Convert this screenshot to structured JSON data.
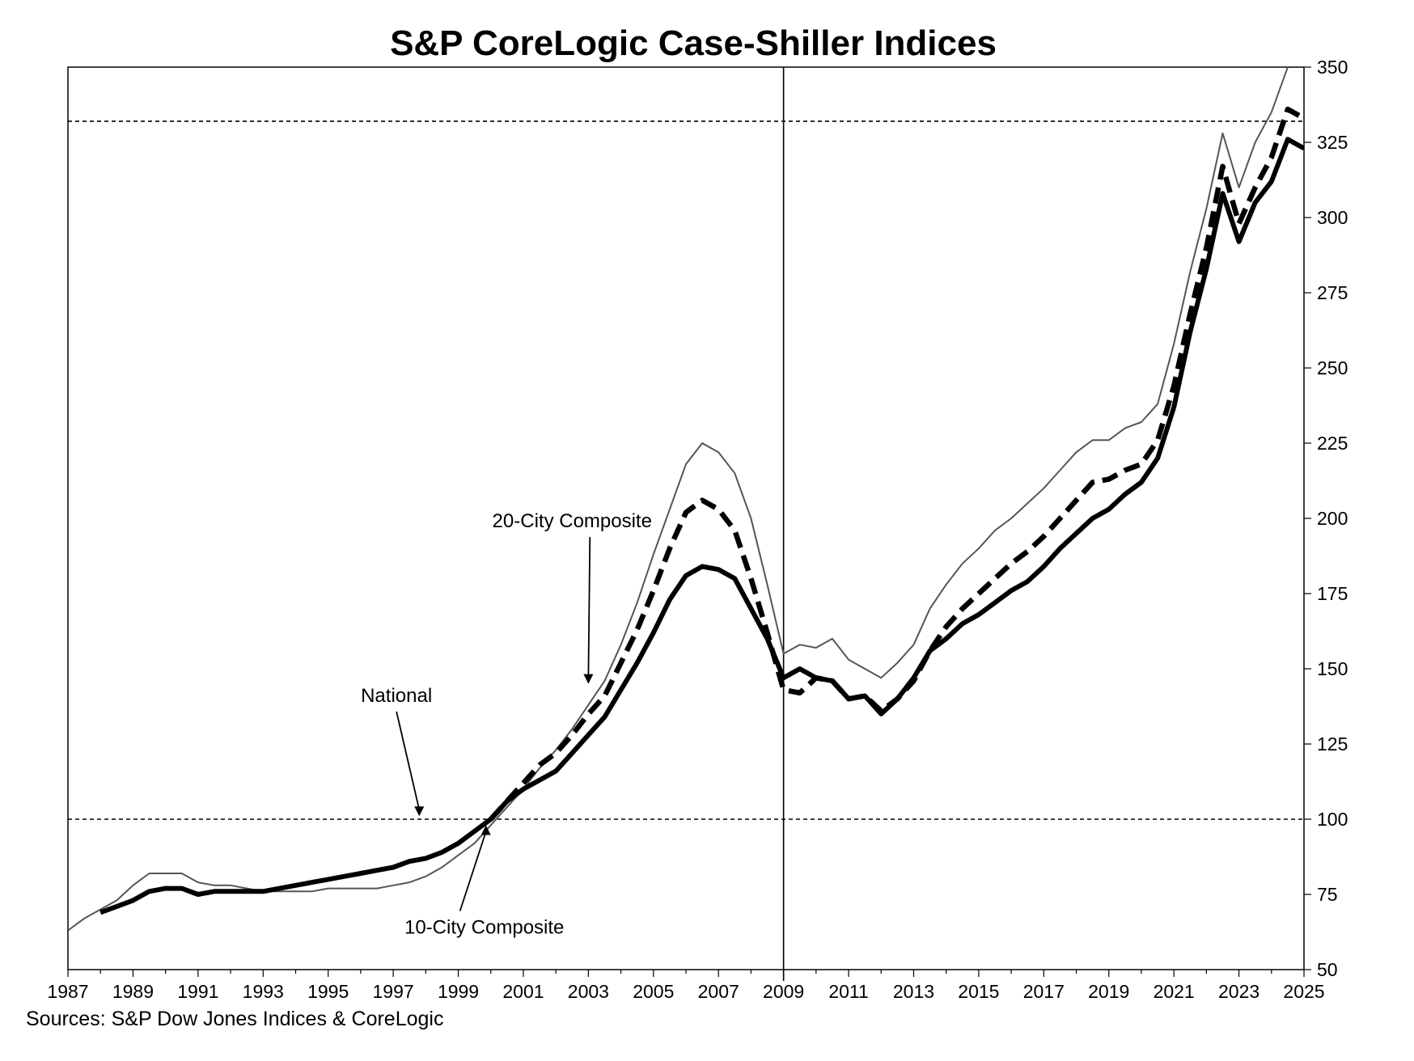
{
  "chart_data": {
    "type": "line",
    "title": "S&P CoreLogic Case-Shiller Indices",
    "xlabel": "",
    "ylabel": "",
    "xlim": [
      1987,
      2025
    ],
    "ylim": [
      50,
      350
    ],
    "x_ticks": [
      "1987",
      "1989",
      "1991",
      "1993",
      "1995",
      "1997",
      "1999",
      "2001",
      "2003",
      "2005",
      "2007",
      "2009",
      "2011",
      "2013",
      "2015",
      "2017",
      "2019",
      "2021",
      "2023",
      "2025"
    ],
    "y_ticks": [
      "50",
      "75",
      "100",
      "125",
      "150",
      "175",
      "200",
      "225",
      "250",
      "275",
      "300",
      "325",
      "350"
    ],
    "y_axis_side": "right",
    "grid": false,
    "reference_lines": {
      "horizontal": [
        100,
        332
      ],
      "vertical": [
        2009
      ]
    },
    "series": [
      {
        "name": "National",
        "style": "thin solid gray",
        "color": "#555555",
        "points": [
          [
            1987.0,
            63
          ],
          [
            1987.5,
            67
          ],
          [
            1988.0,
            70
          ],
          [
            1988.5,
            73
          ],
          [
            1989.0,
            78
          ],
          [
            1989.5,
            82
          ],
          [
            1990.0,
            82
          ],
          [
            1990.5,
            82
          ],
          [
            1991.0,
            79
          ],
          [
            1991.5,
            78
          ],
          [
            1992.0,
            78
          ],
          [
            1992.5,
            77
          ],
          [
            1993.0,
            76
          ],
          [
            1993.5,
            76
          ],
          [
            1994.0,
            76
          ],
          [
            1994.5,
            76
          ],
          [
            1995.0,
            77
          ],
          [
            1995.5,
            77
          ],
          [
            1996.0,
            77
          ],
          [
            1996.5,
            77
          ],
          [
            1997.0,
            78
          ],
          [
            1997.5,
            79
          ],
          [
            1998.0,
            81
          ],
          [
            1998.5,
            84
          ],
          [
            1999.0,
            88
          ],
          [
            1999.5,
            92
          ],
          [
            2000.0,
            98
          ],
          [
            2000.5,
            104
          ],
          [
            2001.0,
            110
          ],
          [
            2001.5,
            117
          ],
          [
            2002.0,
            123
          ],
          [
            2002.5,
            130
          ],
          [
            2003.0,
            138
          ],
          [
            2003.5,
            146
          ],
          [
            2004.0,
            158
          ],
          [
            2004.5,
            172
          ],
          [
            2005.0,
            188
          ],
          [
            2005.5,
            203
          ],
          [
            2006.0,
            218
          ],
          [
            2006.5,
            225
          ],
          [
            2007.0,
            222
          ],
          [
            2007.5,
            215
          ],
          [
            2008.0,
            200
          ],
          [
            2008.5,
            178
          ],
          [
            2009.0,
            155
          ],
          [
            2009.5,
            158
          ],
          [
            2010.0,
            157
          ],
          [
            2010.5,
            160
          ],
          [
            2011.0,
            153
          ],
          [
            2011.5,
            150
          ],
          [
            2012.0,
            147
          ],
          [
            2012.5,
            152
          ],
          [
            2013.0,
            158
          ],
          [
            2013.5,
            170
          ],
          [
            2014.0,
            178
          ],
          [
            2014.5,
            185
          ],
          [
            2015.0,
            190
          ],
          [
            2015.5,
            196
          ],
          [
            2016.0,
            200
          ],
          [
            2016.5,
            205
          ],
          [
            2017.0,
            210
          ],
          [
            2017.5,
            216
          ],
          [
            2018.0,
            222
          ],
          [
            2018.5,
            226
          ],
          [
            2019.0,
            226
          ],
          [
            2019.5,
            230
          ],
          [
            2020.0,
            232
          ],
          [
            2020.5,
            238
          ],
          [
            2021.0,
            258
          ],
          [
            2021.5,
            282
          ],
          [
            2022.0,
            303
          ],
          [
            2022.5,
            328
          ],
          [
            2023.0,
            310
          ],
          [
            2023.5,
            325
          ],
          [
            2024.0,
            335
          ],
          [
            2024.5,
            350
          ]
        ]
      },
      {
        "name": "20-City Composite",
        "style": "thick dashed black",
        "color": "#000000",
        "points": [
          [
            2000.0,
            100
          ],
          [
            2000.5,
            106
          ],
          [
            2001.0,
            112
          ],
          [
            2001.5,
            118
          ],
          [
            2002.0,
            122
          ],
          [
            2002.5,
            128
          ],
          [
            2003.0,
            135
          ],
          [
            2003.5,
            141
          ],
          [
            2004.0,
            152
          ],
          [
            2004.5,
            163
          ],
          [
            2005.0,
            176
          ],
          [
            2005.5,
            190
          ],
          [
            2006.0,
            202
          ],
          [
            2006.5,
            206
          ],
          [
            2007.0,
            203
          ],
          [
            2007.5,
            196
          ],
          [
            2008.0,
            180
          ],
          [
            2008.5,
            162
          ],
          [
            2009.0,
            143
          ],
          [
            2009.5,
            142
          ],
          [
            2010.0,
            147
          ],
          [
            2010.5,
            146
          ],
          [
            2011.0,
            140
          ],
          [
            2011.5,
            141
          ],
          [
            2012.0,
            136
          ],
          [
            2012.5,
            140
          ],
          [
            2013.0,
            146
          ],
          [
            2013.5,
            156
          ],
          [
            2014.0,
            164
          ],
          [
            2014.5,
            170
          ],
          [
            2015.0,
            175
          ],
          [
            2015.5,
            180
          ],
          [
            2016.0,
            185
          ],
          [
            2016.5,
            189
          ],
          [
            2017.0,
            194
          ],
          [
            2017.5,
            200
          ],
          [
            2018.0,
            206
          ],
          [
            2018.5,
            212
          ],
          [
            2019.0,
            213
          ],
          [
            2019.5,
            216
          ],
          [
            2020.0,
            218
          ],
          [
            2020.5,
            226
          ],
          [
            2021.0,
            244
          ],
          [
            2021.5,
            268
          ],
          [
            2022.0,
            290
          ],
          [
            2022.5,
            317
          ],
          [
            2023.0,
            298
          ],
          [
            2023.5,
            310
          ],
          [
            2024.0,
            320
          ],
          [
            2024.5,
            336
          ],
          [
            2025.0,
            333
          ]
        ]
      },
      {
        "name": "10-City Composite",
        "style": "thick solid black",
        "color": "#000000",
        "points": [
          [
            1988.0,
            69
          ],
          [
            1988.5,
            71
          ],
          [
            1989.0,
            73
          ],
          [
            1989.5,
            76
          ],
          [
            1990.0,
            77
          ],
          [
            1990.5,
            77
          ],
          [
            1991.0,
            75
          ],
          [
            1991.5,
            76
          ],
          [
            1992.0,
            76
          ],
          [
            1992.5,
            76
          ],
          [
            1993.0,
            76
          ],
          [
            1993.5,
            77
          ],
          [
            1994.0,
            78
          ],
          [
            1994.5,
            79
          ],
          [
            1995.0,
            80
          ],
          [
            1995.5,
            81
          ],
          [
            1996.0,
            82
          ],
          [
            1996.5,
            83
          ],
          [
            1997.0,
            84
          ],
          [
            1997.5,
            86
          ],
          [
            1998.0,
            87
          ],
          [
            1998.5,
            89
          ],
          [
            1999.0,
            92
          ],
          [
            1999.5,
            96
          ],
          [
            2000.0,
            100
          ],
          [
            2000.5,
            106
          ],
          [
            2001.0,
            110
          ],
          [
            2001.5,
            113
          ],
          [
            2002.0,
            116
          ],
          [
            2002.5,
            122
          ],
          [
            2003.0,
            128
          ],
          [
            2003.5,
            134
          ],
          [
            2004.0,
            143
          ],
          [
            2004.5,
            152
          ],
          [
            2005.0,
            162
          ],
          [
            2005.5,
            173
          ],
          [
            2006.0,
            181
          ],
          [
            2006.5,
            184
          ],
          [
            2007.0,
            183
          ],
          [
            2007.5,
            180
          ],
          [
            2008.0,
            170
          ],
          [
            2008.5,
            160
          ],
          [
            2009.0,
            147
          ],
          [
            2009.5,
            150
          ],
          [
            2010.0,
            147
          ],
          [
            2010.5,
            146
          ],
          [
            2011.0,
            140
          ],
          [
            2011.5,
            141
          ],
          [
            2012.0,
            135
          ],
          [
            2012.5,
            140
          ],
          [
            2013.0,
            147
          ],
          [
            2013.5,
            156
          ],
          [
            2014.0,
            160
          ],
          [
            2014.5,
            165
          ],
          [
            2015.0,
            168
          ],
          [
            2015.5,
            172
          ],
          [
            2016.0,
            176
          ],
          [
            2016.5,
            179
          ],
          [
            2017.0,
            184
          ],
          [
            2017.5,
            190
          ],
          [
            2018.0,
            195
          ],
          [
            2018.5,
            200
          ],
          [
            2019.0,
            203
          ],
          [
            2019.5,
            208
          ],
          [
            2020.0,
            212
          ],
          [
            2020.5,
            220
          ],
          [
            2021.0,
            237
          ],
          [
            2021.5,
            262
          ],
          [
            2022.0,
            283
          ],
          [
            2022.5,
            308
          ],
          [
            2023.0,
            292
          ],
          [
            2023.5,
            305
          ],
          [
            2024.0,
            312
          ],
          [
            2024.5,
            326
          ],
          [
            2025.0,
            323
          ]
        ]
      }
    ],
    "annotations": [
      {
        "text": "20-City Composite",
        "x": 2002.5,
        "y": 197,
        "arrow_to": [
          2003.0,
          145
        ]
      },
      {
        "text": "National",
        "x": 1997.1,
        "y": 139,
        "arrow_to": [
          1997.8,
          101
        ]
      },
      {
        "text": "10-City Composite",
        "x": 1999.8,
        "y": 62,
        "arrow_to": [
          1999.85,
          98
        ]
      }
    ],
    "source": "Sources:  S&P Dow Jones Indices  &  CoreLogic"
  }
}
